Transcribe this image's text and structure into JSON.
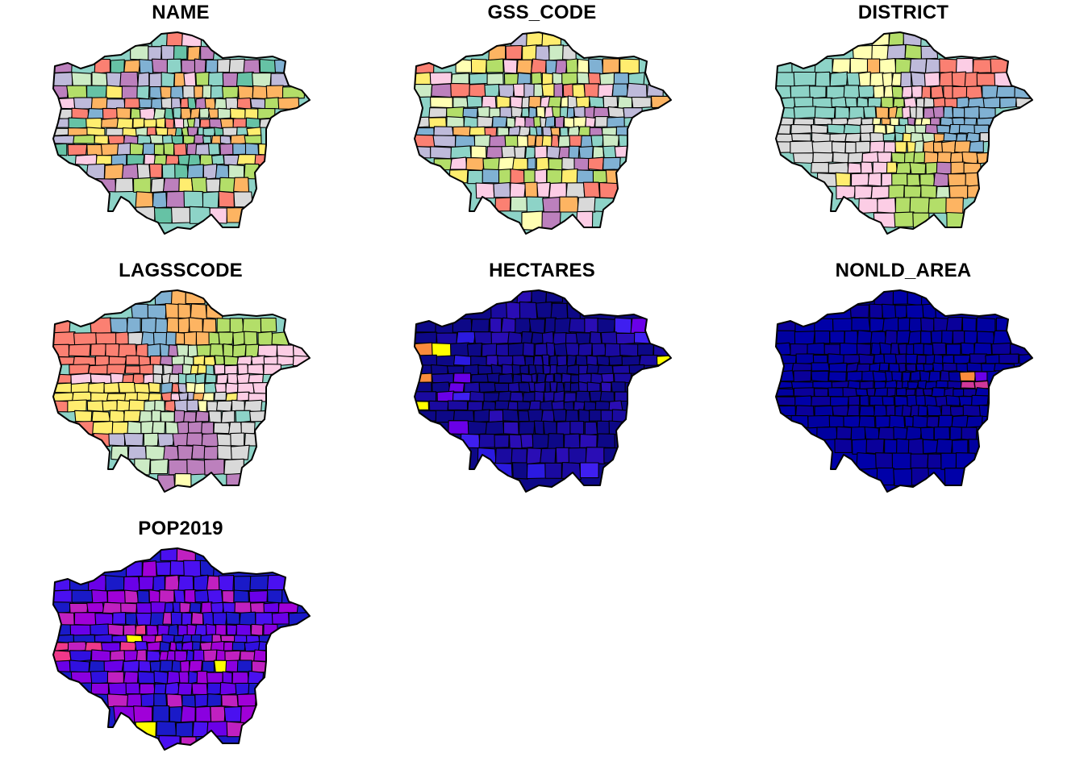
{
  "figure": {
    "panels": [
      {
        "title": "NAME",
        "palette": [
          "#8DD3C7",
          "#BEBADA",
          "#FB8072",
          "#80B1D3",
          "#FDB462",
          "#B3DE69",
          "#FCCDE5",
          "#D9D9D9",
          "#BC80BD",
          "#CCEBC5",
          "#FFED6F",
          "#66C2A5"
        ]
      },
      {
        "title": "GSS_CODE",
        "palette": [
          "#8DD3C7",
          "#FFFFB3",
          "#BEBADA",
          "#FB8072",
          "#80B1D3",
          "#FDB462",
          "#B3DE69",
          "#FCCDE5",
          "#D9D9D9",
          "#BC80BD",
          "#CCEBC5",
          "#FFED6F"
        ]
      },
      {
        "title": "DISTRICT",
        "palette": [
          "#8DD3C7",
          "#FFFFB3",
          "#BEBADA",
          "#FB8072",
          "#80B1D3",
          "#FDB462",
          "#B3DE69",
          "#FCCDE5",
          "#D9D9D9",
          "#BC80BD",
          "#CCEBC5",
          "#FFED6F"
        ]
      },
      {
        "title": "LAGSSCODE",
        "palette": [
          "#8DD3C7",
          "#FFFFB3",
          "#BEBADA",
          "#FB8072",
          "#80B1D3",
          "#FDB462",
          "#B3DE69",
          "#FCCDE5",
          "#D9D9D9",
          "#BC80BD",
          "#CCEBC5",
          "#FFED6F"
        ]
      },
      {
        "title": "HECTARES",
        "palette": [
          "#0D0887",
          "#1A0AA0",
          "#2A0DB5",
          "#2B1AE0",
          "#3F1FF0",
          "#6A00E8",
          "#9A00D8",
          "#F0388A",
          "#FA8C3C",
          "#FFFF00"
        ]
      },
      {
        "title": "NONLD_AREA",
        "palette": [
          "#0000A8",
          "#0000A0",
          "#0A009A",
          "#6A00E8",
          "#D0389A",
          "#FA8C3C",
          "#FFFF00"
        ]
      },
      {
        "title": "POP2019",
        "palette": [
          "#1A1AC8",
          "#3010E0",
          "#4A10F0",
          "#6A00E8",
          "#8A00E0",
          "#A000D8",
          "#C020C0",
          "#F0388A",
          "#FFFF00"
        ]
      }
    ]
  }
}
